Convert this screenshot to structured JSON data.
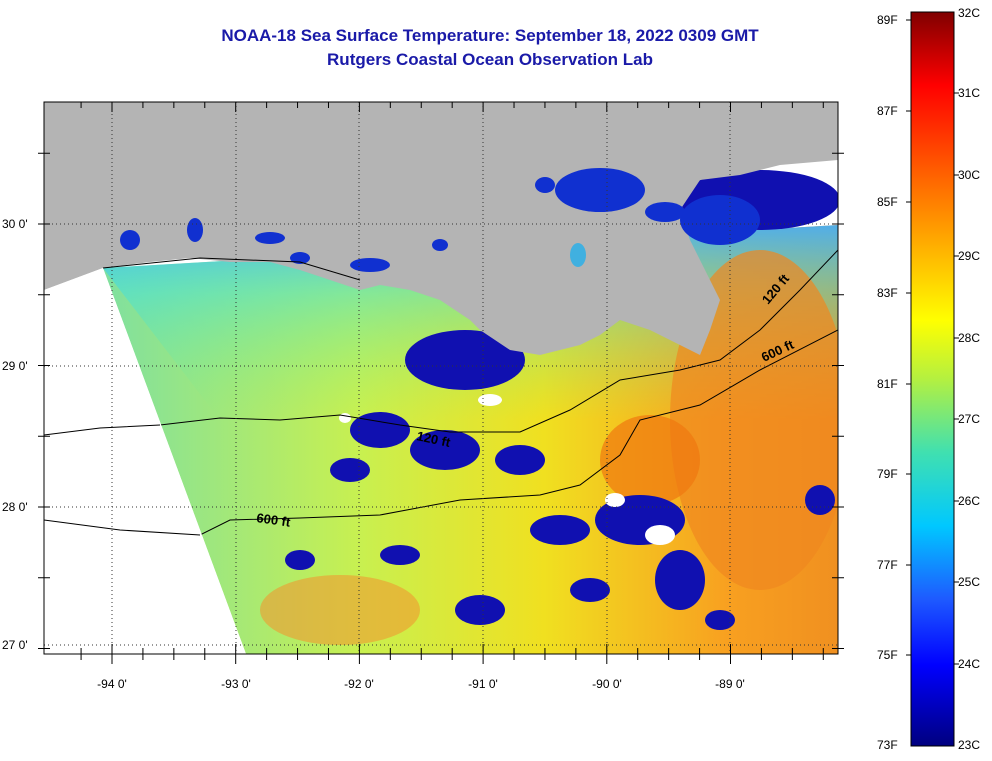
{
  "title": "NOAA-18 Sea Surface Temperature:  September 18, 2022 0309 GMT",
  "subtitle": "Rutgers Coastal Ocean Observation Lab",
  "lon_ticks": [
    "-94 0'",
    "-93 0'",
    "-92 0'",
    "-91 0'",
    "-90 0'",
    "-89 0'"
  ],
  "lat_ticks": [
    "30 0'",
    "29 0'",
    "28 0'",
    "27 0'"
  ],
  "contours": [
    "120 ft",
    "600 ft",
    "120 ft",
    "600 ft"
  ],
  "colorbar": {
    "f_labels": [
      "89F",
      "87F",
      "85F",
      "83F",
      "81F",
      "79F",
      "77F",
      "75F",
      "73F"
    ],
    "c_labels": [
      "32C",
      "31C",
      "30C",
      "29C",
      "28C",
      "27C",
      "26C",
      "25C",
      "24C",
      "23C"
    ]
  },
  "colors": {
    "land": "#b4b4b4",
    "title": "#1a1aa8"
  }
}
